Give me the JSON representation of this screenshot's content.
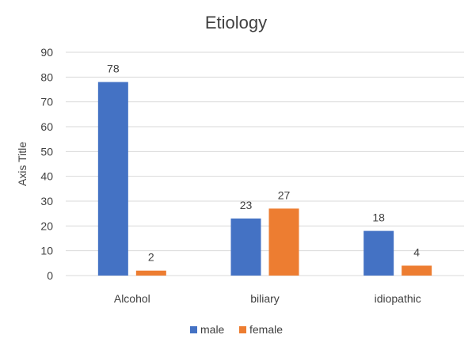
{
  "chart_data": {
    "type": "bar",
    "title": "Etiology",
    "xlabel": "",
    "ylabel": "Axis Title",
    "categories": [
      "Alcohol",
      "biliary",
      "idiopathic"
    ],
    "series": [
      {
        "name": "male",
        "values": [
          78,
          23,
          18
        ],
        "color": "#4472c4"
      },
      {
        "name": "female",
        "values": [
          2,
          27,
          4
        ],
        "color": "#ed7d31"
      }
    ],
    "ylim": [
      0,
      90
    ],
    "yticks": [
      0,
      10,
      20,
      30,
      40,
      50,
      60,
      70,
      80,
      90
    ],
    "grid": true,
    "legend_position": "bottom",
    "data_labels": true
  }
}
